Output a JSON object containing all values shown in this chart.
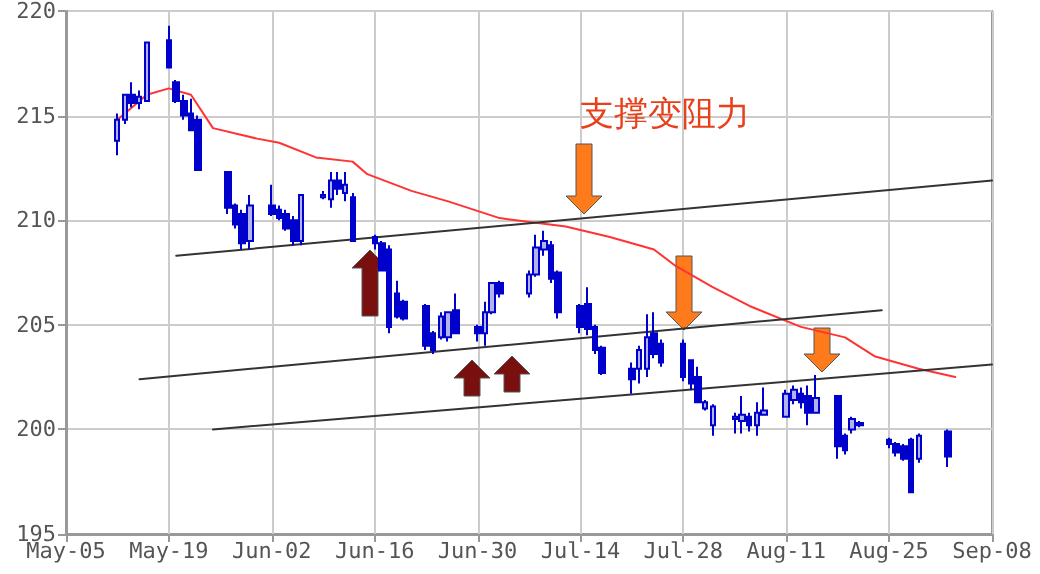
{
  "chart_data": {
    "type": "candlestick",
    "annotations": [
      "支撑变阻力"
    ],
    "grid": true,
    "marker": "none",
    "xlim": [
      "--05-05",
      "--09-08"
    ],
    "xticks": [
      {
        "value": "--05-05",
        "label": "May-05"
      },
      {
        "value": "--05-19",
        "label": "May-19"
      },
      {
        "value": "--06-02",
        "label": "Jun-02"
      },
      {
        "value": "--06-16",
        "label": "Jun-16"
      },
      {
        "value": "--06-30",
        "label": "Jun-30"
      },
      {
        "value": "--07-14",
        "label": "Jul-14"
      },
      {
        "value": "--07-28",
        "label": "Jul-28"
      },
      {
        "value": "--08-11",
        "label": "Aug-11"
      },
      {
        "value": "--08-25",
        "label": "Aug-25"
      },
      {
        "value": "--09-08",
        "label": "Sep-08"
      }
    ],
    "ylim": [
      195,
      220
    ],
    "yticks": [
      195,
      200,
      205,
      210,
      215,
      220
    ],
    "series": [
      {
        "type": "candlestick",
        "color": "#0000cc",
        "x": [
          "--05-12",
          "--05-13",
          "--05-14",
          "--05-15",
          "--05-16",
          "--05-19",
          "--05-20",
          "--05-21",
          "--05-22",
          "--05-23",
          "--05-27",
          "--05-28",
          "--05-29",
          "--05-30",
          "--06-02",
          "--06-03",
          "--06-04",
          "--06-05",
          "--06-06",
          "--06-09",
          "--06-10",
          "--06-11",
          "--06-12",
          "--06-13",
          "--06-16",
          "--06-17",
          "--06-18",
          "--06-19",
          "--06-20",
          "--06-23",
          "--06-24",
          "--06-25",
          "--06-26",
          "--06-27",
          "--06-30",
          "--07-01",
          "--07-02",
          "--07-03",
          "--07-07",
          "--07-08",
          "--07-09",
          "--07-10",
          "--07-11",
          "--07-14",
          "--07-15",
          "--07-16",
          "--07-17",
          "--07-21",
          "--07-22",
          "--07-23",
          "--07-24",
          "--07-25",
          "--07-28",
          "--07-29",
          "--07-30",
          "--07-31",
          "--08-01",
          "--08-04",
          "--08-05",
          "--08-06",
          "--08-07",
          "--08-08",
          "--08-11",
          "--08-12",
          "--08-13",
          "--08-14",
          "--08-15",
          "--08-18",
          "--08-19",
          "--08-20",
          "--08-21",
          "--08-25",
          "--08-26",
          "--08-27",
          "--08-28",
          "--08-29",
          "--09-02"
        ],
        "ohlc": [
          [
            213.8,
            215.1,
            213.1,
            214.8
          ],
          [
            214.8,
            216.0,
            214.6,
            216.0
          ],
          [
            216.0,
            216.6,
            215.4,
            215.6
          ],
          [
            215.6,
            216.2,
            215.3,
            215.9
          ],
          [
            215.7,
            218.5,
            215.7,
            218.5
          ],
          [
            218.6,
            219.3,
            217.3,
            217.3
          ],
          [
            216.6,
            216.7,
            215.6,
            215.7
          ],
          [
            215.7,
            216.0,
            214.8,
            215.0
          ],
          [
            215.1,
            215.8,
            214.3,
            214.3
          ],
          [
            214.8,
            215.0,
            212.4,
            212.4
          ],
          [
            212.3,
            212.3,
            210.3,
            210.6
          ],
          [
            210.7,
            210.8,
            209.6,
            209.8
          ],
          [
            210.3,
            210.5,
            208.6,
            208.9
          ],
          [
            209.0,
            211.2,
            208.6,
            210.7
          ],
          [
            210.7,
            211.7,
            210.2,
            210.3
          ],
          [
            210.5,
            210.7,
            210.0,
            210.1
          ],
          [
            210.3,
            210.5,
            209.5,
            209.6
          ],
          [
            210.0,
            210.2,
            208.8,
            209.0
          ],
          [
            209.0,
            211.2,
            208.8,
            211.2
          ],
          [
            211.1,
            211.4,
            211.0,
            211.2
          ],
          [
            211.0,
            212.3,
            210.6,
            211.9
          ],
          [
            211.9,
            212.3,
            211.2,
            211.5
          ],
          [
            211.3,
            212.3,
            210.9,
            211.7
          ],
          [
            211.1,
            211.3,
            209.0,
            209.0
          ],
          [
            209.2,
            209.3,
            208.6,
            208.9
          ],
          [
            208.9,
            209.0,
            207.6,
            207.6
          ],
          [
            208.6,
            208.8,
            204.6,
            204.9
          ],
          [
            206.5,
            207.1,
            205.3,
            205.4
          ],
          [
            206.1,
            206.2,
            205.2,
            205.3
          ],
          [
            205.9,
            206.0,
            203.8,
            204.0
          ],
          [
            204.6,
            204.7,
            203.6,
            203.8
          ],
          [
            204.4,
            205.6,
            204.3,
            205.4
          ],
          [
            204.4,
            205.6,
            204.2,
            205.6
          ],
          [
            205.7,
            206.5,
            204.6,
            204.6
          ],
          [
            204.9,
            205.0,
            204.2,
            204.6
          ],
          [
            204.6,
            206.1,
            204.0,
            205.6
          ],
          [
            205.6,
            207.0,
            205.5,
            207.0
          ],
          [
            207.0,
            207.1,
            206.3,
            206.5
          ],
          [
            206.5,
            207.6,
            206.3,
            207.4
          ],
          [
            207.4,
            209.3,
            207.3,
            208.7
          ],
          [
            208.6,
            209.5,
            208.3,
            209.0
          ],
          [
            208.8,
            209.0,
            207.0,
            207.2
          ],
          [
            207.5,
            207.6,
            205.3,
            205.6
          ],
          [
            205.9,
            206.0,
            204.6,
            204.9
          ],
          [
            206.0,
            206.8,
            204.5,
            204.8
          ],
          [
            204.9,
            205.0,
            203.6,
            203.8
          ],
          [
            203.9,
            204.0,
            202.6,
            202.7
          ],
          [
            202.9,
            203.2,
            201.7,
            202.4
          ],
          [
            202.9,
            204.0,
            202.2,
            203.8
          ],
          [
            202.9,
            205.5,
            202.5,
            204.4
          ],
          [
            204.6,
            205.6,
            203.4,
            203.6
          ],
          [
            204.1,
            204.3,
            203.0,
            203.2
          ],
          [
            204.1,
            204.3,
            202.3,
            202.5
          ],
          [
            203.3,
            203.3,
            201.9,
            202.2
          ],
          [
            202.5,
            203.0,
            201.3,
            201.3
          ],
          [
            201.0,
            201.4,
            200.9,
            201.3
          ],
          [
            200.2,
            201.2,
            199.7,
            201.1
          ],
          [
            200.5,
            200.8,
            199.8,
            200.6
          ],
          [
            200.4,
            201.6,
            199.8,
            200.7
          ],
          [
            200.6,
            200.8,
            199.9,
            200.2
          ],
          [
            200.2,
            201.3,
            199.7,
            200.8
          ],
          [
            200.7,
            202.0,
            200.7,
            200.9
          ],
          [
            200.6,
            201.9,
            200.6,
            201.7
          ],
          [
            201.4,
            202.1,
            201.2,
            201.9
          ],
          [
            201.7,
            202.0,
            201.0,
            201.3
          ],
          [
            201.6,
            202.1,
            200.2,
            200.8
          ],
          [
            200.8,
            202.6,
            200.8,
            201.5
          ],
          [
            201.6,
            201.6,
            198.6,
            199.2
          ],
          [
            199.7,
            199.8,
            198.8,
            199.0
          ],
          [
            200.0,
            200.6,
            199.8,
            200.5
          ],
          [
            200.3,
            200.4,
            200.1,
            200.2
          ],
          [
            199.5,
            199.6,
            199.1,
            199.3
          ],
          [
            199.3,
            199.4,
            198.7,
            198.9
          ],
          [
            199.2,
            199.3,
            198.5,
            198.6
          ],
          [
            199.5,
            199.6,
            197.0,
            197.0
          ],
          [
            198.6,
            199.8,
            198.4,
            199.7
          ],
          [
            199.9,
            200.0,
            198.2,
            198.7
          ]
        ]
      },
      {
        "type": "line",
        "color": "#ff3333",
        "x": [
          "--05-12",
          "--05-16",
          "--05-19",
          "--05-22",
          "--05-25",
          "--05-31",
          "--06-03",
          "--06-08",
          "--06-13",
          "--06-15",
          "--06-21",
          "--06-26",
          "--07-03",
          "--07-12",
          "--07-18",
          "--07-24",
          "--07-27",
          "--08-01",
          "--08-06",
          "--08-13",
          "--08-19",
          "--08-23",
          "--08-29",
          "--09-03"
        ],
        "values": [
          214.8,
          216.0,
          216.3,
          216.0,
          214.4,
          213.9,
          213.7,
          213.0,
          212.8,
          212.2,
          211.4,
          210.9,
          210.1,
          209.7,
          209.2,
          208.6,
          207.8,
          206.8,
          205.9,
          204.9,
          204.4,
          203.5,
          202.9,
          202.5
        ]
      },
      {
        "type": "line",
        "color": "#333333",
        "x": [
          "--05-20",
          "--09-08"
        ],
        "values": [
          208.3,
          211.9
        ]
      },
      {
        "type": "line",
        "color": "#333333",
        "x": [
          "--05-15",
          "--08-24"
        ],
        "values": [
          202.4,
          205.7
        ]
      },
      {
        "type": "line",
        "color": "#333333",
        "x": [
          "--05-25",
          "--09-08"
        ],
        "values": [
          200.0,
          203.1
        ]
      }
    ]
  }
}
